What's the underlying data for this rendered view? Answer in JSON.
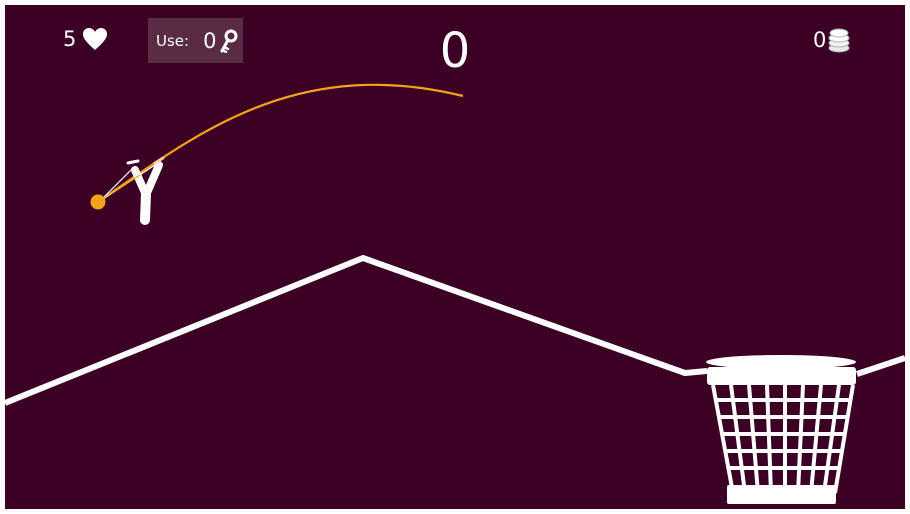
{
  "hud": {
    "lives": "5",
    "use_label": "Use:",
    "keys": "0",
    "score": "0",
    "coins": "0"
  },
  "icons": {
    "lives": "heart-icon",
    "keys": "key-icon",
    "coins": "coin-stack-icon"
  },
  "colors": {
    "background": "#3b0024",
    "hud_panel": "#5a2c44",
    "ball": "#f5a21b",
    "trajectory": "#f5a21b",
    "lines": "#ffffff"
  }
}
